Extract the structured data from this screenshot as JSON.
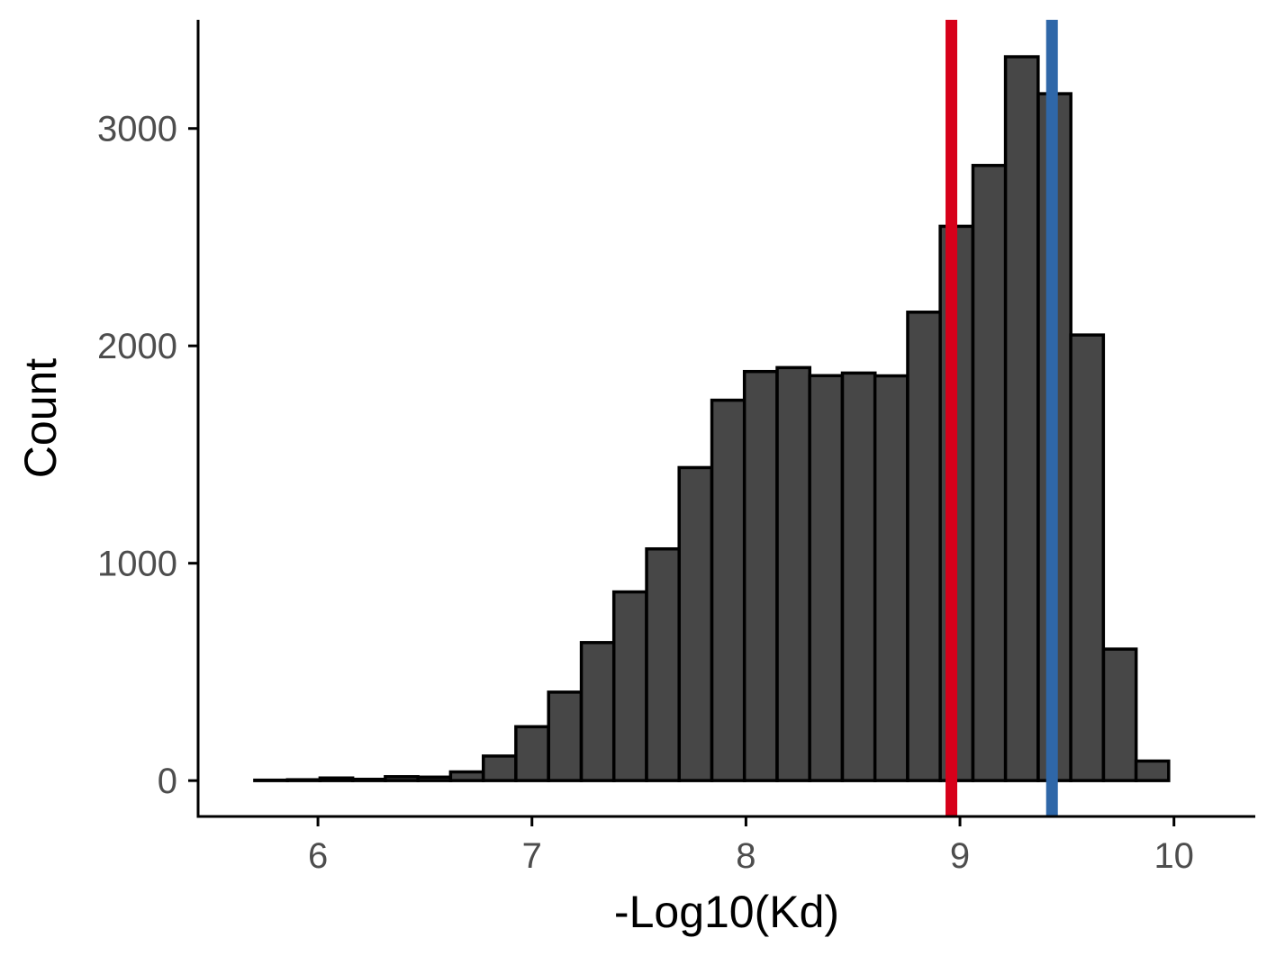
{
  "chart_data": {
    "type": "bar",
    "subtype": "histogram",
    "title": "",
    "xlabel": "-Log10(Kd)",
    "ylabel": "Count",
    "xlim": [
      5.44,
      10.38
    ],
    "ylim": [
      -165,
      3500
    ],
    "x_ticks": [
      6,
      7,
      8,
      9,
      10
    ],
    "x_tick_labels": [
      "6",
      "7",
      "8",
      "9",
      "10"
    ],
    "y_ticks": [
      0,
      1000,
      2000,
      3000
    ],
    "y_tick_labels": [
      "0",
      "1000",
      "2000",
      "3000"
    ],
    "bin_width": 0.1525,
    "bin_centers": [
      5.629,
      5.781,
      5.934,
      6.086,
      6.239,
      6.391,
      6.544,
      6.696,
      6.849,
      7.001,
      7.154,
      7.307,
      7.459,
      7.612,
      7.764,
      7.917,
      8.069,
      8.222,
      8.374,
      8.527,
      8.679,
      8.832,
      8.984,
      9.137,
      9.289,
      9.442,
      9.594,
      9.747,
      9.899,
      10.052
    ],
    "values": [
      0,
      2,
      4,
      12,
      6,
      18,
      16,
      40,
      113,
      248,
      407,
      635,
      868,
      1066,
      1440,
      1750,
      1882,
      1900,
      1863,
      1875,
      1862,
      2155,
      2550,
      2830,
      3330,
      3160,
      2050,
      605,
      90,
      0
    ],
    "bar_fill": "#474747",
    "bar_stroke": "#000000",
    "reference_lines": [
      {
        "x": 8.96,
        "color": "#d7001a"
      },
      {
        "x": 9.43,
        "color": "#2f67a8"
      }
    ],
    "grid": false,
    "legend": "none"
  }
}
